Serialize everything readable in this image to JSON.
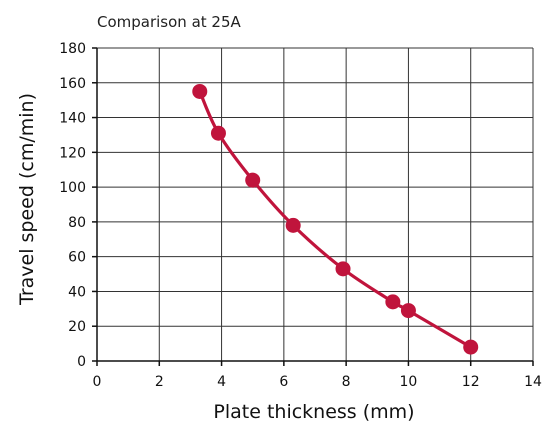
{
  "chart_data": {
    "type": "line",
    "title": "Comparison at 25A",
    "xlabel": "Plate thickness (mm)",
    "ylabel": "Travel speed (cm/min)",
    "xlim": [
      0,
      14
    ],
    "ylim": [
      0,
      180
    ],
    "x_ticks": [
      0,
      2,
      4,
      6,
      8,
      10,
      12,
      14
    ],
    "y_ticks": [
      0,
      20,
      40,
      60,
      80,
      100,
      120,
      140,
      160,
      180
    ],
    "grid": true,
    "series": [
      {
        "color": "#c0143c",
        "points": [
          {
            "x": 3.3,
            "y": 155
          },
          {
            "x": 3.9,
            "y": 131
          },
          {
            "x": 5.0,
            "y": 104
          },
          {
            "x": 6.3,
            "y": 78
          },
          {
            "x": 7.9,
            "y": 53
          },
          {
            "x": 9.5,
            "y": 34
          },
          {
            "x": 10.0,
            "y": 29
          },
          {
            "x": 12.0,
            "y": 8
          }
        ]
      }
    ]
  }
}
